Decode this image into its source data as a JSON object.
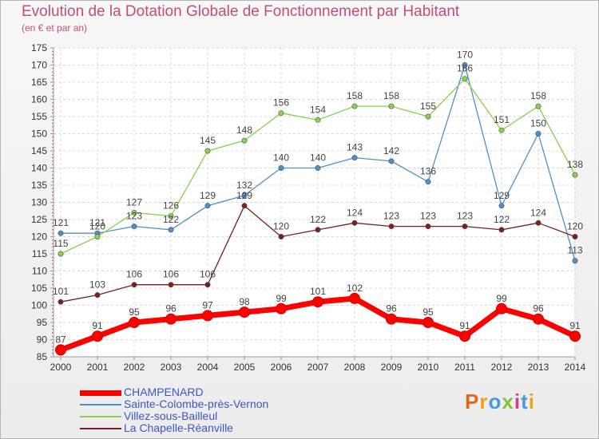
{
  "chart_title": "Evolution de la Dotation Globale de Fonctionnement par Habitant",
  "chart_subtitle": "(en € et par an)",
  "logo": {
    "text": "Proxiti",
    "colors": [
      "#e06a1b",
      "#e8a31d",
      "#4a9ad6",
      "#88c23b",
      "#d63c8c",
      "#4a9ad6",
      "#e8a31d"
    ]
  },
  "chart_data": {
    "type": "line",
    "x": [
      "2000",
      "2001",
      "2002",
      "2003",
      "2004",
      "2005",
      "2006",
      "2007",
      "2008",
      "2009",
      "2010",
      "2011",
      "2012",
      "2013",
      "2014"
    ],
    "ylim": [
      85,
      175
    ],
    "yticks": [
      85,
      90,
      95,
      100,
      105,
      110,
      115,
      120,
      125,
      130,
      135,
      140,
      145,
      150,
      155,
      160,
      165,
      170,
      175
    ],
    "grid": true,
    "legend_position": "bottom-left",
    "series": [
      {
        "name": "CHAMPENARD",
        "color": "#ff0000",
        "values": [
          87,
          91,
          95,
          96,
          97,
          98,
          99,
          101,
          102,
          96,
          95,
          91,
          99,
          96,
          91
        ]
      },
      {
        "name": "Sainte-Colombe-près-Vernon",
        "color": "#4d8fcc",
        "values": [
          121,
          121,
          123,
          122,
          129,
          132,
          140,
          140,
          143,
          142,
          136,
          170,
          129,
          150,
          113
        ]
      },
      {
        "name": "Villez-sous-Bailleul",
        "color": "#88d050",
        "values": [
          115,
          120,
          127,
          126,
          145,
          148,
          156,
          154,
          158,
          158,
          155,
          166,
          151,
          158,
          138
        ]
      },
      {
        "name": "La Chapelle-Réanville",
        "color": "#7a1f1f",
        "values": [
          101,
          103,
          106,
          106,
          106,
          129,
          120,
          122,
          124,
          123,
          123,
          123,
          122,
          124,
          120
        ]
      }
    ]
  }
}
